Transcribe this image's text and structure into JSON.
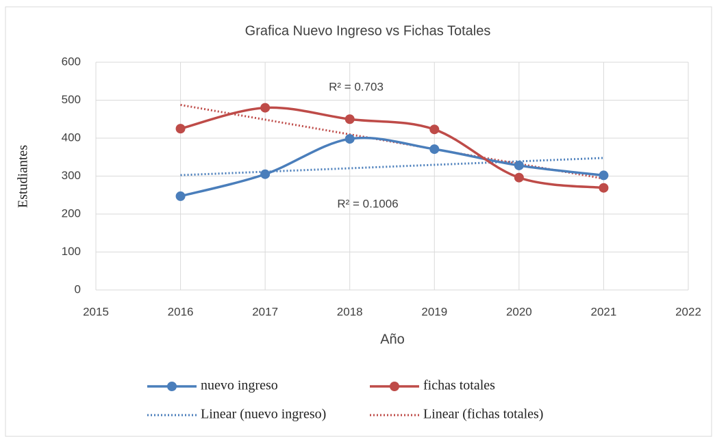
{
  "chart_data": {
    "type": "line",
    "title": "Grafica Nuevo Ingreso vs Fichas Totales",
    "x_label": "Año",
    "y_label": "Estudiantes",
    "x": [
      2016,
      2017,
      2018,
      2019,
      2020,
      2021
    ],
    "xlim": [
      2015,
      2022
    ],
    "xticks": [
      2015,
      2016,
      2017,
      2018,
      2019,
      2020,
      2021,
      2022
    ],
    "ylim": [
      0,
      600
    ],
    "yticks": [
      0,
      100,
      200,
      300,
      400,
      500,
      600
    ],
    "grid": true,
    "smooth": true,
    "legend": "bottom",
    "series": [
      {
        "name": "nuevo ingreso",
        "color": "#4a7ebb",
        "values": [
          247,
          305,
          398,
          371,
          328,
          302
        ]
      },
      {
        "name": "fichas totales",
        "color": "#be4b48",
        "values": [
          425,
          480,
          450,
          423,
          296,
          269
        ]
      }
    ],
    "trendlines": [
      {
        "name": "Linear (nuevo ingreso)",
        "series": 0,
        "color": "#4a7ebb",
        "label": "R² = 0.1006"
      },
      {
        "name": "Linear (fichas totales)",
        "series": 1,
        "color": "#be4b48",
        "label": "R² = 0.703"
      }
    ]
  }
}
